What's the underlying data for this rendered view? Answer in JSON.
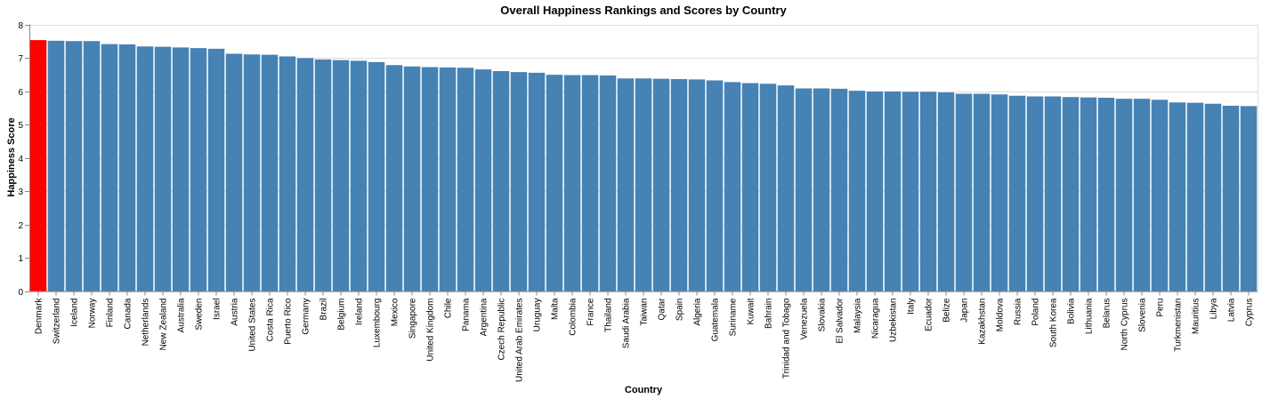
{
  "chart_data": {
    "type": "bar",
    "title": "Overall Happiness Rankings and Scores by Country",
    "xlabel": "Country",
    "ylabel": "Happiness Score",
    "ylim": [
      0,
      8
    ],
    "yticks": [
      0,
      1,
      2,
      3,
      4,
      5,
      6,
      7,
      8
    ],
    "grid": true,
    "colors": {
      "default": "#4682b4",
      "highlight": "#ff0000"
    },
    "highlight_category": "Denmark",
    "categories": [
      "Denmark",
      "Switzerland",
      "Iceland",
      "Norway",
      "Finland",
      "Canada",
      "Netherlands",
      "New Zealand",
      "Australia",
      "Sweden",
      "Israel",
      "Austria",
      "United States",
      "Costa Rica",
      "Puerto Rico",
      "Germany",
      "Brazil",
      "Belgium",
      "Ireland",
      "Luxembourg",
      "Mexico",
      "Singapore",
      "United Kingdom",
      "Chile",
      "Panama",
      "Argentina",
      "Czech Republic",
      "United Arab Emirates",
      "Uruguay",
      "Malta",
      "Colombia",
      "France",
      "Thailand",
      "Saudi Arabia",
      "Taiwan",
      "Qatar",
      "Spain",
      "Algeria",
      "Guatemala",
      "Suriname",
      "Kuwait",
      "Bahrain",
      "Trinidad and Tobago",
      "Venezuela",
      "Slovakia",
      "El Salvador",
      "Malaysia",
      "Nicaragua",
      "Uzbekistan",
      "Italy",
      "Ecuador",
      "Belize",
      "Japan",
      "Kazakhstan",
      "Moldova",
      "Russia",
      "Poland",
      "South Korea",
      "Bolivia",
      "Lithuania",
      "Belarus",
      "North Cyprus",
      "Slovenia",
      "Peru",
      "Turkmenistan",
      "Mauritius",
      "Libya",
      "Latvia",
      "Cyprus"
    ],
    "values": [
      7.53,
      7.51,
      7.5,
      7.5,
      7.41,
      7.4,
      7.34,
      7.33,
      7.31,
      7.29,
      7.27,
      7.12,
      7.1,
      7.09,
      7.04,
      6.99,
      6.95,
      6.93,
      6.91,
      6.87,
      6.78,
      6.74,
      6.72,
      6.71,
      6.7,
      6.65,
      6.6,
      6.57,
      6.55,
      6.49,
      6.48,
      6.48,
      6.47,
      6.38,
      6.38,
      6.37,
      6.36,
      6.35,
      6.32,
      6.27,
      6.24,
      6.22,
      6.17,
      6.08,
      6.08,
      6.07,
      6.01,
      5.99,
      5.99,
      5.98,
      5.98,
      5.96,
      5.92,
      5.92,
      5.9,
      5.86,
      5.84,
      5.84,
      5.82,
      5.81,
      5.8,
      5.77,
      5.77,
      5.74,
      5.66,
      5.65,
      5.62,
      5.56,
      5.55
    ]
  }
}
